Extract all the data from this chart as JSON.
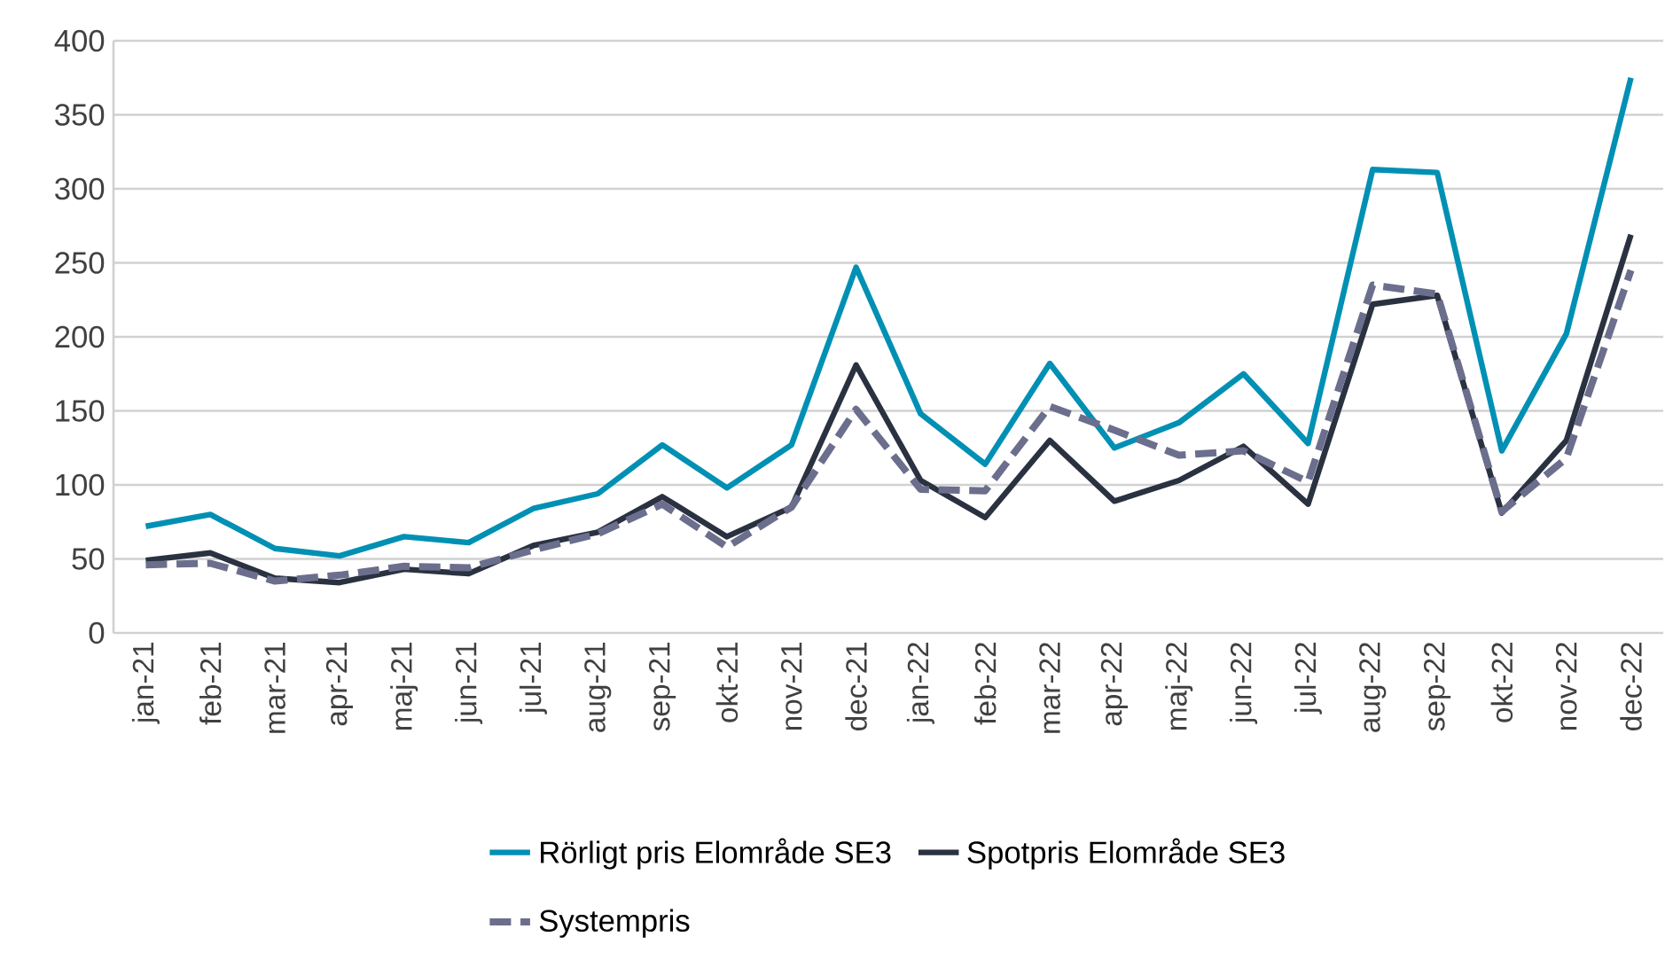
{
  "chart_data": {
    "type": "line",
    "categories": [
      "jan-21",
      "feb-21",
      "mar-21",
      "apr-21",
      "maj-21",
      "jun-21",
      "jul-21",
      "aug-21",
      "sep-21",
      "okt-21",
      "nov-21",
      "dec-21",
      "jan-22",
      "feb-22",
      "mar-22",
      "apr-22",
      "maj-22",
      "jun-22",
      "jul-22",
      "aug-22",
      "sep-22",
      "okt-22",
      "nov-22",
      "dec-22"
    ],
    "series": [
      {
        "name": "Rörligt pris Elområde SE3",
        "color": "#0090b4",
        "line_style": "solid",
        "values": [
          72,
          80,
          57,
          52,
          65,
          61,
          84,
          94,
          127,
          98,
          127,
          247,
          148,
          114,
          182,
          125,
          142,
          175,
          128,
          313,
          311,
          123,
          202,
          375
        ]
      },
      {
        "name": "Spotpris Elområde SE3",
        "color": "#2a3140",
        "line_style": "solid",
        "values": [
          49,
          54,
          37,
          34,
          43,
          40,
          59,
          68,
          92,
          65,
          85,
          181,
          103,
          78,
          130,
          89,
          103,
          126,
          87,
          222,
          228,
          81,
          130,
          269
        ]
      },
      {
        "name": "Systempris",
        "color": "#6b6e8c",
        "line_style": "dashed",
        "values": [
          46,
          47,
          35,
          39,
          45,
          44,
          56,
          67,
          87,
          58,
          85,
          151,
          97,
          96,
          153,
          137,
          120,
          123,
          102,
          235,
          229,
          82,
          118,
          245
        ]
      }
    ],
    "ylim": [
      0,
      400
    ],
    "yticks": [
      0,
      50,
      100,
      150,
      200,
      250,
      300,
      350,
      400
    ],
    "grid": "y",
    "legend": "bottom"
  }
}
